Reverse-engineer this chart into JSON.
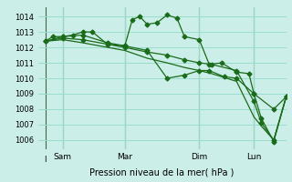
{
  "background_color": "#cceee8",
  "grid_color": "#99ddcc",
  "line_color": "#1a6b1a",
  "title": "Pression niveau de la mer( hPa )",
  "ylabel_ticks": [
    1006,
    1007,
    1008,
    1009,
    1010,
    1011,
    1012,
    1013,
    1014
  ],
  "ylim": [
    1005.4,
    1014.6
  ],
  "xlim": [
    0,
    10
  ],
  "x_ticks_labels": [
    "Sam",
    "Mar",
    "Dim",
    "Lun"
  ],
  "x_ticks_pos": [
    1.0,
    3.5,
    6.5,
    8.7
  ],
  "vlines_x": [
    0.3,
    1.0,
    3.5,
    6.5,
    8.7
  ],
  "vlines_color": "#446644",
  "series1_x": [
    0.3,
    0.6,
    1.0,
    1.4,
    1.8,
    2.2,
    2.8,
    3.5,
    3.8,
    4.1,
    4.4,
    4.8,
    5.2,
    5.6,
    5.9,
    6.5,
    6.9,
    7.4,
    8.0,
    8.5,
    8.7,
    9.0,
    9.5,
    10.0
  ],
  "series1_y": [
    1012.4,
    1012.7,
    1012.7,
    1012.8,
    1013.0,
    1013.0,
    1012.2,
    1012.1,
    1013.8,
    1014.0,
    1013.5,
    1013.6,
    1014.1,
    1013.9,
    1012.7,
    1012.5,
    1010.9,
    1011.0,
    1010.4,
    1010.3,
    1009.0,
    1007.4,
    1005.9,
    1008.8
  ],
  "series2_x": [
    0.3,
    1.0,
    1.8,
    2.8,
    3.5,
    4.4,
    5.2,
    5.9,
    6.5,
    6.9,
    7.5,
    8.0,
    8.7,
    9.5,
    10.0
  ],
  "series2_y": [
    1012.4,
    1012.7,
    1012.8,
    1012.3,
    1012.1,
    1011.8,
    1010.0,
    1010.2,
    1010.5,
    1010.5,
    1010.1,
    1010.0,
    1009.0,
    1008.0,
    1008.8
  ],
  "series3_x": [
    0.3,
    1.0,
    1.8,
    3.5,
    4.4,
    5.2,
    5.9,
    6.5,
    7.0,
    8.0,
    8.7,
    9.0,
    9.5,
    10.0
  ],
  "series3_y": [
    1012.4,
    1012.6,
    1012.5,
    1012.0,
    1011.7,
    1011.5,
    1011.2,
    1011.0,
    1010.9,
    1010.5,
    1008.5,
    1007.1,
    1006.0,
    1008.8
  ],
  "series4_x": [
    0.3,
    1.0,
    1.8,
    3.5,
    4.4,
    5.2,
    5.9,
    6.5,
    7.0,
    8.0,
    8.7,
    9.0,
    9.5,
    10.0
  ],
  "series4_y": [
    1012.4,
    1012.5,
    1012.3,
    1011.8,
    1011.3,
    1011.0,
    1010.7,
    1010.5,
    1010.3,
    1009.8,
    1007.5,
    1006.9,
    1006.0,
    1008.8
  ]
}
